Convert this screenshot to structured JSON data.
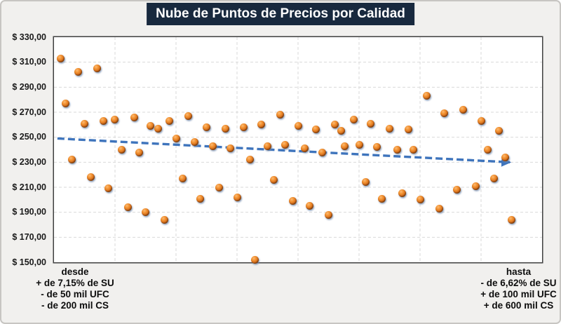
{
  "title": "Nube de Puntos de Precios por Calidad",
  "chart_data": {
    "type": "scatter",
    "title": "Nube de Puntos de Precios por Calidad",
    "legend": "none",
    "grid": "dashed, both axes",
    "y_axis": {
      "min": 150,
      "max": 330,
      "step": 20,
      "ticks": [
        {
          "value": 330,
          "label": "$ 330,00"
        },
        {
          "value": 310,
          "label": "$ 310,00"
        },
        {
          "value": 290,
          "label": "$ 290,00"
        },
        {
          "value": 270,
          "label": "$ 270,00"
        },
        {
          "value": 250,
          "label": "$ 250,00"
        },
        {
          "value": 230,
          "label": "$ 230,00"
        },
        {
          "value": 210,
          "label": "$ 210,00"
        },
        {
          "value": 190,
          "label": "$ 190,00"
        },
        {
          "value": 170,
          "label": "$ 170,00"
        },
        {
          "value": 150,
          "label": "$ 150,00"
        }
      ]
    },
    "x_axis": {
      "divisions": 8,
      "left_annotation": [
        "desde",
        "+ de 7,15% de SU",
        "- de 50 mil UFC",
        "- de 200 mil CS"
      ],
      "right_annotation": [
        "hasta",
        "- de 6,62% de SU",
        "+ de 100 mil UFC",
        "+ de 600 mil CS"
      ]
    },
    "points_format": "[x_percent_across_plot, price]",
    "points": [
      [
        1.3,
        313
      ],
      [
        5.0,
        302
      ],
      [
        8.8,
        305
      ],
      [
        2.4,
        277
      ],
      [
        6.2,
        261
      ],
      [
        10.2,
        263
      ],
      [
        12.4,
        264
      ],
      [
        16.4,
        266
      ],
      [
        19.8,
        259
      ],
      [
        21.4,
        257
      ],
      [
        23.7,
        263
      ],
      [
        25.0,
        249
      ],
      [
        27.5,
        267
      ],
      [
        28.8,
        246
      ],
      [
        31.2,
        258
      ],
      [
        32.6,
        243
      ],
      [
        13.8,
        240
      ],
      [
        17.5,
        238
      ],
      [
        35.1,
        257
      ],
      [
        38.8,
        258
      ],
      [
        42.5,
        260
      ],
      [
        46.3,
        268
      ],
      [
        50.0,
        259
      ],
      [
        53.7,
        256
      ],
      [
        57.6,
        260
      ],
      [
        58.8,
        255
      ],
      [
        61.4,
        264
      ],
      [
        64.8,
        261
      ],
      [
        43.8,
        243
      ],
      [
        47.4,
        244
      ],
      [
        51.3,
        241
      ],
      [
        54.9,
        238
      ],
      [
        59.6,
        243
      ],
      [
        62.5,
        244
      ],
      [
        66.1,
        242
      ],
      [
        68.8,
        257
      ],
      [
        72.6,
        256
      ],
      [
        76.3,
        283
      ],
      [
        80.0,
        269
      ],
      [
        83.9,
        272
      ],
      [
        87.5,
        263
      ],
      [
        91.2,
        255
      ],
      [
        88.9,
        240
      ],
      [
        92.4,
        234
      ],
      [
        70.3,
        240
      ],
      [
        73.7,
        240
      ],
      [
        3.7,
        232
      ],
      [
        7.6,
        218
      ],
      [
        11.2,
        209
      ],
      [
        26.3,
        217
      ],
      [
        30.0,
        201
      ],
      [
        33.8,
        210
      ],
      [
        15.1,
        194
      ],
      [
        18.8,
        190
      ],
      [
        22.6,
        184
      ],
      [
        36.1,
        241
      ],
      [
        40.1,
        232
      ],
      [
        45.1,
        216
      ],
      [
        37.5,
        202
      ],
      [
        48.9,
        199
      ],
      [
        52.4,
        195
      ],
      [
        56.2,
        188
      ],
      [
        41.2,
        152
      ],
      [
        63.9,
        214
      ],
      [
        67.1,
        201
      ],
      [
        71.4,
        205
      ],
      [
        75.0,
        200
      ],
      [
        78.9,
        193
      ],
      [
        82.5,
        208
      ],
      [
        86.4,
        211
      ],
      [
        90.1,
        217
      ],
      [
        93.8,
        184
      ]
    ],
    "trendline": {
      "style": "dashed",
      "arrow": true,
      "direction": "decreasing",
      "start": {
        "x_pct": 0.7,
        "value": 249
      },
      "end": {
        "x_pct": 93.4,
        "value": 230
      }
    },
    "colors": {
      "marker_fill": "#ED7D31",
      "marker_edge": "#6E3609",
      "trend": "#3E74BC",
      "title_bg": "#18293E",
      "title_fg": "#FFFFFF",
      "grid": "#D9D9D9",
      "plot_border": "#404040",
      "plot_bg": "#FFFFFF",
      "background": "#F1F0EE",
      "frame_border": "#C7C5C2"
    }
  }
}
